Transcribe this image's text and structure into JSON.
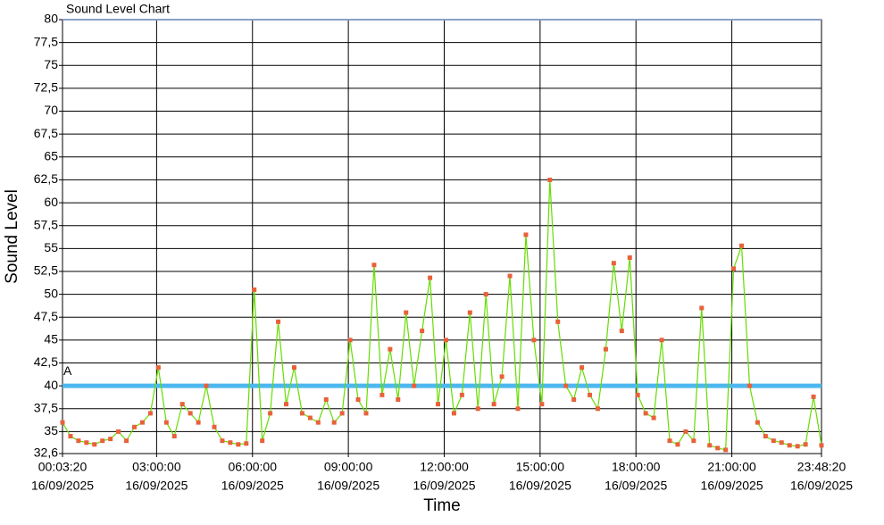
{
  "chart_data": {
    "type": "line",
    "title": "Sound Level Chart",
    "xlabel": "Time",
    "ylabel": "Sound Level",
    "xlim": [
      200,
      85700
    ],
    "ylim": [
      32.6,
      80
    ],
    "xticks": [
      {
        "value": 200,
        "label": [
          "00:03:20",
          "16/09/2025"
        ]
      },
      {
        "value": 10800,
        "label": [
          "03:00:00",
          "16/09/2025"
        ]
      },
      {
        "value": 21600,
        "label": [
          "06:00:00",
          "16/09/2025"
        ]
      },
      {
        "value": 32400,
        "label": [
          "09:00:00",
          "16/09/2025"
        ]
      },
      {
        "value": 43200,
        "label": [
          "12:00:00",
          "16/09/2025"
        ]
      },
      {
        "value": 54000,
        "label": [
          "15:00:00",
          "16/09/2025"
        ]
      },
      {
        "value": 64800,
        "label": [
          "18:00:00",
          "16/09/2025"
        ]
      },
      {
        "value": 75600,
        "label": [
          "21:00:00",
          "16/09/2025"
        ]
      },
      {
        "value": 85700,
        "label": [
          "23:48:20",
          "16/09/2025"
        ]
      }
    ],
    "yticks": [
      {
        "value": 32.6,
        "label": "32,6"
      },
      35,
      {
        "value": 37.5,
        "label": "37,5"
      },
      40,
      {
        "value": 42.5,
        "label": "42,5"
      },
      45,
      {
        "value": 47.5,
        "label": "47,5"
      },
      50,
      {
        "value": 52.5,
        "label": "52,5"
      },
      55,
      {
        "value": 57.5,
        "label": "57,5"
      },
      60,
      {
        "value": 62.5,
        "label": "62,5"
      },
      65,
      {
        "value": 67.5,
        "label": "67,5"
      },
      70,
      {
        "value": 72.5,
        "label": "72,5"
      },
      75,
      {
        "value": 77.5,
        "label": "77,5"
      },
      80
    ],
    "grid": true,
    "threshold": {
      "value": 40,
      "label": "A",
      "color": "#4db8f0"
    },
    "x": [
      200,
      1100,
      2000,
      2900,
      3800,
      4700,
      5600,
      6500,
      7400,
      8300,
      9200,
      10100,
      11000,
      11900,
      12800,
      13700,
      14600,
      15500,
      16400,
      17300,
      18200,
      19100,
      20000,
      20900,
      21800,
      22700,
      23600,
      24500,
      25400,
      26300,
      27200,
      28100,
      29000,
      29900,
      30800,
      31700,
      32600,
      33500,
      34400,
      35300,
      36200,
      37100,
      38000,
      38900,
      39800,
      40700,
      41600,
      42500,
      43400,
      44300,
      45200,
      46100,
      47000,
      47900,
      48800,
      49700,
      50600,
      51500,
      52400,
      53300,
      54200,
      55100,
      56000,
      56900,
      57800,
      58700,
      59600,
      60500,
      61400,
      62300,
      63200,
      64100,
      65000,
      65900,
      66800,
      67700,
      68600,
      69500,
      70400,
      71300,
      72200,
      73100,
      74000,
      74900,
      75800,
      76700,
      77600,
      78500,
      79400,
      80300,
      81200,
      82100,
      83000,
      83900,
      84800,
      85700
    ],
    "series": [
      {
        "color": "#66dd00",
        "marker_color": "#e8613a",
        "values": [
          36,
          34.5,
          34,
          33.8,
          33.6,
          34,
          34.2,
          35,
          34,
          35.5,
          36,
          37,
          42,
          36,
          34.5,
          38,
          37,
          36,
          40,
          35.5,
          34,
          33.8,
          33.6,
          33.7,
          50.5,
          34,
          37,
          47,
          38,
          42,
          37,
          36.5,
          36,
          38.5,
          36,
          37,
          45,
          38.5,
          37,
          53.2,
          39,
          44,
          38.5,
          48,
          40,
          46,
          51.8,
          38,
          45,
          37,
          39,
          48,
          37.5,
          50,
          38,
          41,
          52,
          37.5,
          56.5,
          45,
          38,
          62.5,
          47,
          40,
          38.5,
          42,
          39,
          37.5,
          44,
          53.4,
          46,
          54,
          39,
          37,
          36.5,
          45,
          34,
          33.6,
          35,
          34,
          48.5,
          33.5,
          33.2,
          33,
          52.8,
          55.3,
          40,
          36,
          34.5,
          34,
          33.8,
          33.5,
          33.4,
          33.6,
          38.8,
          33.5
        ]
      }
    ]
  }
}
